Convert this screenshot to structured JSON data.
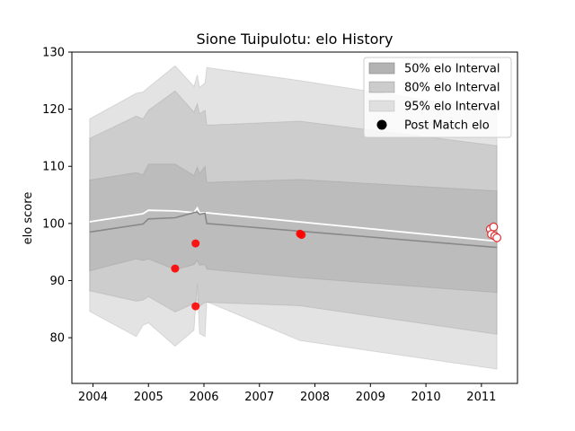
{
  "chart_data": {
    "type": "line",
    "title": "Sione Tuipulotu: elo History",
    "xlabel": "",
    "ylabel": "elo score",
    "xlim": [
      2003.62,
      2011.65
    ],
    "ylim": [
      72,
      130
    ],
    "x_ticks": [
      "2004",
      "2005",
      "2006",
      "2007",
      "2008",
      "2009",
      "2010",
      "2011"
    ],
    "y_ticks": [
      "80",
      "90",
      "100",
      "110",
      "120",
      "130"
    ],
    "grid": false,
    "legend_position": "top-right",
    "legend": [
      {
        "label": "50% elo Interval",
        "kind": "patch",
        "color": "#b0b0b0"
      },
      {
        "label": "80% elo Interval",
        "kind": "patch",
        "color": "#c8c8c8"
      },
      {
        "label": "95% elo Interval",
        "kind": "patch",
        "color": "#e0e0e0"
      },
      {
        "label": "Post Match elo",
        "kind": "marker",
        "color": "#000000"
      }
    ],
    "bands": {
      "x": [
        2003.94,
        2004.78,
        2004.9,
        2005.0,
        2005.48,
        2005.82,
        2005.88,
        2005.92,
        2006.02,
        2006.05,
        2007.73,
        2011.28
      ],
      "p95_upper": [
        118.3,
        122.8,
        123.0,
        123.8,
        127.6,
        124.0,
        126.0,
        123.8,
        124.6,
        127.3,
        125.0,
        119.7
      ],
      "p80_upper": [
        114.9,
        118.8,
        118.3,
        119.8,
        123.2,
        119.5,
        121.0,
        119.2,
        119.8,
        117.2,
        117.9,
        113.6
      ],
      "p50_upper": [
        107.6,
        108.9,
        108.5,
        110.4,
        110.4,
        108.4,
        109.9,
        108.7,
        110.0,
        107.2,
        107.7,
        105.7
      ],
      "p50_lower": [
        91.7,
        93.8,
        93.5,
        93.8,
        91.9,
        92.8,
        93.5,
        92.7,
        92.8,
        92.0,
        90.5,
        87.9
      ],
      "p80_lower": [
        88.2,
        86.4,
        86.6,
        87.2,
        84.5,
        86.0,
        86.6,
        85.5,
        86.2,
        86.2,
        85.6,
        80.6
      ],
      "p95_lower": [
        84.6,
        80.2,
        82.2,
        82.6,
        78.5,
        81.3,
        89.4,
        80.7,
        80.2,
        86.3,
        79.5,
        74.5
      ]
    },
    "series": [
      {
        "name": "",
        "color": "#ffffff",
        "x": [
          2003.94,
          2004.9,
          2005.0,
          2005.48,
          2005.82,
          2005.88,
          2005.92,
          2006.02,
          2011.28
        ],
        "y": [
          100.3,
          101.7,
          102.3,
          102.2,
          101.9,
          102.7,
          101.8,
          101.9,
          96.9
        ]
      },
      {
        "name": "",
        "color": "#888888",
        "x": [
          2003.94,
          2004.9,
          2005.0,
          2005.48,
          2005.82,
          2005.88,
          2005.92,
          2006.02,
          2006.05,
          2011.28
        ],
        "y": [
          98.5,
          99.9,
          100.8,
          101.0,
          101.9,
          102.0,
          101.6,
          101.8,
          100.0,
          95.8
        ]
      }
    ],
    "points": [
      {
        "x": 2005.48,
        "y": 92.1,
        "style": "solid"
      },
      {
        "x": 2005.85,
        "y": 96.5,
        "style": "solid"
      },
      {
        "x": 2005.85,
        "y": 85.5,
        "style": "solid"
      },
      {
        "x": 2007.73,
        "y": 98.2,
        "style": "solid"
      },
      {
        "x": 2007.76,
        "y": 98.0,
        "style": "solid"
      },
      {
        "x": 2011.16,
        "y": 99.0,
        "style": "hollow"
      },
      {
        "x": 2011.22,
        "y": 99.4,
        "style": "hollow"
      },
      {
        "x": 2011.18,
        "y": 98.1,
        "style": "hollow"
      },
      {
        "x": 2011.24,
        "y": 97.8,
        "style": "hollow"
      },
      {
        "x": 2011.28,
        "y": 97.5,
        "style": "hollow"
      }
    ]
  }
}
